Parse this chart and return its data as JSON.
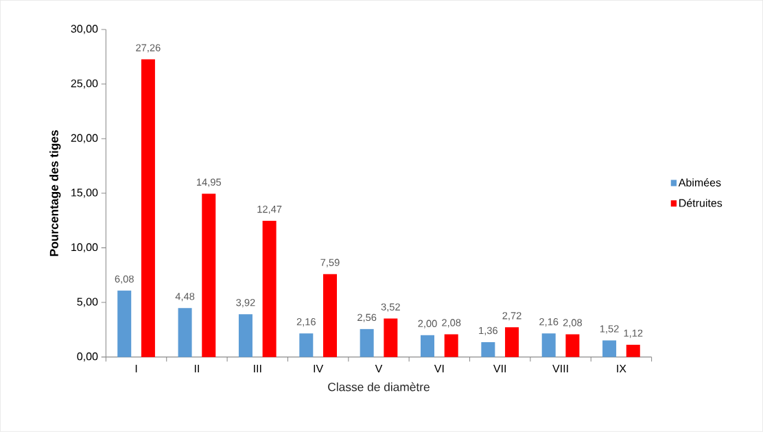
{
  "chart_data": {
    "type": "bar",
    "xlabel": "Classe de diamètre",
    "ylabel": "Pourcentage des tiges",
    "categories": [
      "I",
      "II",
      "III",
      "IV",
      "V",
      "VI",
      "VII",
      "VIII",
      "IX"
    ],
    "series": [
      {
        "name": "Abimées",
        "color": "#5b9bd5",
        "values": [
          6.08,
          4.48,
          3.92,
          2.16,
          2.56,
          2.0,
          1.36,
          2.16,
          1.52
        ],
        "value_labels": [
          "6,08",
          "4,48",
          "3,92",
          "2,16",
          "2,56",
          "2,00",
          "1,36",
          "2,16",
          "1,52"
        ]
      },
      {
        "name": "Détruites",
        "color": "#ff0000",
        "values": [
          27.26,
          14.95,
          12.47,
          7.59,
          3.52,
          2.08,
          2.72,
          2.08,
          1.12
        ],
        "value_labels": [
          "27,26",
          "14,95",
          "12,47",
          "7,59",
          "3,52",
          "2,08",
          "2,72",
          "2,08",
          "1,12"
        ]
      }
    ],
    "ylim": [
      0,
      30
    ],
    "yticks": [
      {
        "value": 0,
        "label": "0,00"
      },
      {
        "value": 5,
        "label": "5,00"
      },
      {
        "value": 10,
        "label": "10,00"
      },
      {
        "value": 15,
        "label": "15,00"
      },
      {
        "value": 20,
        "label": "20,00"
      },
      {
        "value": 25,
        "label": "25,00"
      },
      {
        "value": 30,
        "label": "30,00"
      }
    ],
    "grid": false,
    "legend": "right"
  }
}
